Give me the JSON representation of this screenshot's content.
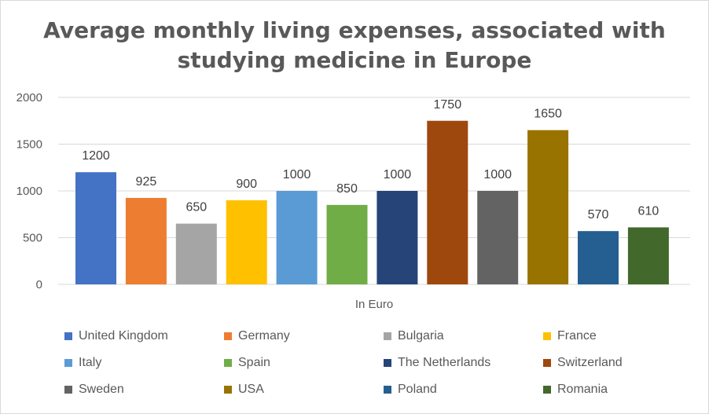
{
  "chart_data": {
    "type": "bar",
    "title": "Average monthly living expenses, associated with studying medicine in Europe",
    "xlabel": "In Euro",
    "ylabel": "",
    "ylim": [
      0,
      2000
    ],
    "yticks": [
      0,
      500,
      1000,
      1500,
      2000
    ],
    "grid": true,
    "legend_position": "bottom",
    "series": [
      {
        "name": "United Kingdom",
        "value": 1200,
        "color": "#4472c4"
      },
      {
        "name": "Germany",
        "value": 925,
        "color": "#ed7d31"
      },
      {
        "name": "Bulgaria",
        "value": 650,
        "color": "#a5a5a5"
      },
      {
        "name": "France",
        "value": 900,
        "color": "#ffc000"
      },
      {
        "name": "Italy",
        "value": 1000,
        "color": "#5b9bd5"
      },
      {
        "name": "Spain",
        "value": 850,
        "color": "#70ad47"
      },
      {
        "name": "The Netherlands",
        "value": 1000,
        "color": "#264478"
      },
      {
        "name": "Switzerland",
        "value": 1750,
        "color": "#9e480e"
      },
      {
        "name": "Sweden",
        "value": 1000,
        "color": "#636363"
      },
      {
        "name": "USA",
        "value": 1650,
        "color": "#997300"
      },
      {
        "name": "Poland",
        "value": 570,
        "color": "#255e91"
      },
      {
        "name": "Romania",
        "value": 610,
        "color": "#43682b"
      }
    ]
  }
}
